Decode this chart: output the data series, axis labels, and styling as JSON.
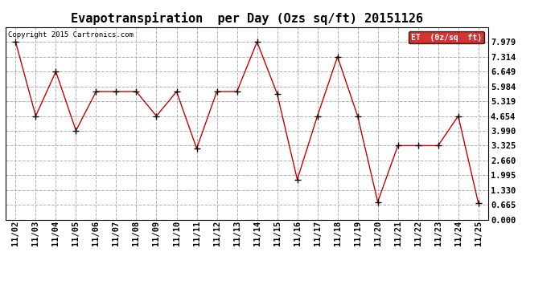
{
  "title": "Evapotranspiration  per Day (Ozs sq/ft) 20151126",
  "copyright": "Copyright 2015 Cartronics.com",
  "legend_label": "ET  (0z/sq  ft)",
  "legend_bg": "#cc0000",
  "legend_text_color": "#ffffff",
  "dates": [
    "11/02",
    "11/03",
    "11/04",
    "11/05",
    "11/06",
    "11/07",
    "11/08",
    "11/09",
    "11/10",
    "11/11",
    "11/12",
    "11/13",
    "11/14",
    "11/15",
    "11/16",
    "11/17",
    "11/18",
    "11/19",
    "11/20",
    "11/21",
    "11/22",
    "11/23",
    "11/24",
    "11/25"
  ],
  "values": [
    7.979,
    4.654,
    6.649,
    4.0,
    5.75,
    5.75,
    5.75,
    4.654,
    5.75,
    3.2,
    5.75,
    5.75,
    7.979,
    5.65,
    1.8,
    4.654,
    7.314,
    4.654,
    0.8,
    3.325,
    3.325,
    3.325,
    4.654,
    0.75
  ],
  "ylim": [
    0.0,
    8.644
  ],
  "yticks": [
    0.0,
    0.665,
    1.33,
    1.995,
    2.66,
    3.325,
    3.99,
    4.654,
    5.319,
    5.984,
    6.649,
    7.314,
    7.979
  ],
  "line_color": "#cc0000",
  "marker_color": "#000000",
  "marker_size": 3,
  "bg_color": "#ffffff",
  "grid_color": "#b0b0b0",
  "title_fontsize": 11,
  "tick_fontsize": 7.5,
  "copyright_fontsize": 6.5
}
